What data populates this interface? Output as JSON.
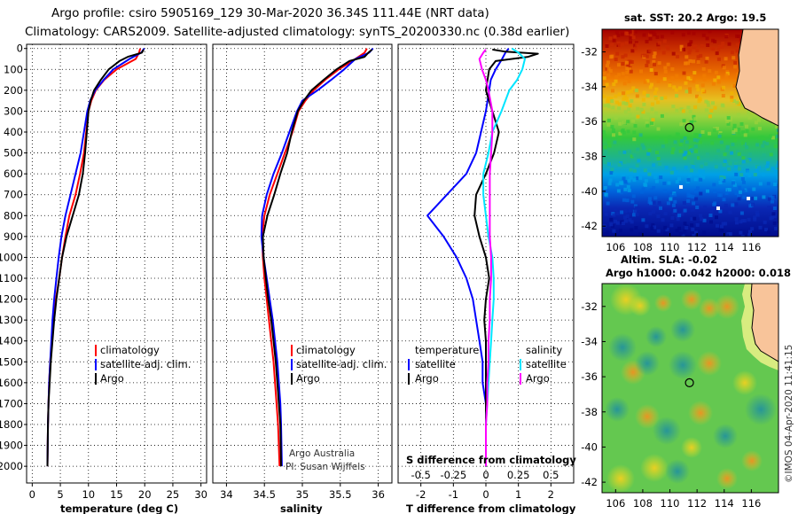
{
  "title": {
    "line1": "Argo profile: csiro 5905169_129 30-Mar-2020 36.34S 111.44E (NRT data)",
    "line2": "Climatology: CARS2009. Satellite-adjusted climatology: synTS_20200330.nc (0.38d earlier)"
  },
  "colors": {
    "argo": "#000000",
    "climatology": "#ff0000",
    "satellite": "#0000ff",
    "sat_salinity": "#00e5ff",
    "argo_salinity": "#ff00ff"
  },
  "chart_data": [
    {
      "type": "line",
      "name": "temperature",
      "xlabel": "temperature (deg C)",
      "ylabel": "",
      "xlim": [
        -1,
        31
      ],
      "ylim": [
        2080,
        -20
      ],
      "xticks": [
        0,
        5,
        10,
        15,
        20,
        25,
        30
      ],
      "yticks": [
        0,
        100,
        200,
        300,
        400,
        500,
        600,
        700,
        800,
        900,
        1000,
        1100,
        1200,
        1300,
        1400,
        1500,
        1600,
        1700,
        1800,
        1900,
        2000
      ],
      "legend": [
        "climatology",
        "satellite-adj. clim.",
        "Argo"
      ],
      "series": [
        {
          "name": "climatology",
          "color": "#ff0000",
          "x": [
            19.2,
            19.0,
            18.4,
            15.0,
            12.8,
            11.3,
            10.5,
            10.0,
            9.6,
            9.2,
            8.5,
            7.7,
            6.6,
            5.9,
            5.3,
            4.8,
            4.2,
            3.8,
            3.5,
            3.2,
            3.0,
            2.9,
            2.8,
            2.7
          ],
          "y": [
            0,
            20,
            50,
            100,
            150,
            200,
            250,
            300,
            400,
            500,
            600,
            700,
            800,
            900,
            1000,
            1100,
            1200,
            1300,
            1400,
            1500,
            1600,
            1700,
            1800,
            2000
          ]
        },
        {
          "name": "satellite-adj. clim.",
          "color": "#0000ff",
          "x": [
            19.9,
            19.4,
            17.3,
            14.4,
            12.7,
            11.2,
            10.3,
            9.8,
            9.2,
            8.6,
            7.7,
            6.8,
            5.9,
            5.2,
            4.7,
            4.3,
            3.9,
            3.6,
            3.4,
            3.2,
            3.0,
            2.9,
            2.8,
            2.7
          ],
          "y": [
            0,
            20,
            50,
            100,
            150,
            200,
            250,
            300,
            400,
            500,
            600,
            700,
            800,
            900,
            1000,
            1100,
            1200,
            1300,
            1400,
            1500,
            1600,
            1700,
            1800,
            2000
          ]
        },
        {
          "name": "Argo",
          "color": "#000000",
          "x": [
            19.8,
            19.5,
            17.0,
            15.5,
            13.6,
            12.2,
            11.0,
            10.4,
            10.0,
            9.7,
            9.4,
            9.0,
            8.3,
            7.2,
            6.1,
            5.3,
            4.8,
            4.3,
            3.9,
            3.6,
            3.3,
            3.1,
            2.9,
            2.8,
            2.7
          ],
          "y": [
            5,
            20,
            40,
            60,
            100,
            150,
            200,
            250,
            300,
            400,
            500,
            600,
            700,
            800,
            900,
            1000,
            1100,
            1200,
            1300,
            1400,
            1500,
            1600,
            1700,
            1800,
            2000
          ]
        }
      ]
    },
    {
      "type": "line",
      "name": "salinity",
      "xlabel": "salinity",
      "ylabel": "",
      "xlim": [
        33.82,
        36.18
      ],
      "ylim": [
        2080,
        -20
      ],
      "xticks": [
        34,
        34.5,
        35,
        35.5,
        36
      ],
      "legend": [
        "climatology",
        "satellite-adj. clim.",
        "Argo"
      ],
      "series": [
        {
          "name": "climatology",
          "color": "#ff0000",
          "x": [
            35.85,
            35.82,
            35.7,
            35.48,
            35.3,
            35.15,
            35.04,
            34.95,
            34.87,
            34.77,
            34.67,
            34.57,
            34.5,
            34.47,
            34.48,
            34.5,
            34.53,
            34.56,
            34.59,
            34.62,
            34.64,
            34.66,
            34.68,
            34.7
          ],
          "y": [
            0,
            20,
            50,
            100,
            150,
            200,
            250,
            300,
            400,
            500,
            600,
            700,
            800,
            900,
            1000,
            1100,
            1200,
            1300,
            1400,
            1500,
            1600,
            1700,
            1800,
            2000
          ]
        },
        {
          "name": "satellite-adj. clim.",
          "color": "#0000ff",
          "x": [
            35.93,
            35.88,
            35.7,
            35.55,
            35.38,
            35.2,
            35.0,
            34.93,
            34.83,
            34.73,
            34.62,
            34.53,
            34.47,
            34.46,
            34.49,
            34.53,
            34.57,
            34.61,
            34.64,
            34.67,
            34.69,
            34.71,
            34.72,
            34.73
          ],
          "y": [
            0,
            20,
            50,
            100,
            150,
            200,
            250,
            300,
            400,
            500,
            600,
            700,
            800,
            900,
            1000,
            1100,
            1200,
            1300,
            1400,
            1500,
            1600,
            1700,
            1800,
            2000
          ]
        },
        {
          "name": "Argo",
          "color": "#000000",
          "x": [
            35.92,
            35.87,
            35.82,
            35.62,
            35.45,
            35.28,
            35.12,
            35.02,
            34.94,
            34.86,
            34.8,
            34.71,
            34.63,
            34.54,
            34.48,
            34.49,
            34.52,
            34.55,
            34.59,
            34.62,
            34.65,
            34.67,
            34.69,
            34.71,
            34.72
          ],
          "y": [
            5,
            20,
            40,
            60,
            100,
            150,
            200,
            250,
            300,
            400,
            500,
            600,
            700,
            800,
            900,
            1000,
            1100,
            1200,
            1300,
            1400,
            1500,
            1600,
            1700,
            1800,
            2000
          ]
        }
      ]
    },
    {
      "type": "line",
      "name": "difference",
      "xlabel": "T difference from climatology",
      "x2label": "S difference from climatology",
      "xlim": [
        -2.7,
        2.7
      ],
      "ylim": [
        2080,
        -20
      ],
      "xticks": [
        -2,
        -1,
        0,
        1,
        2
      ],
      "x2ticks": [
        -0.5,
        -0.25,
        0,
        0.25,
        0.5
      ],
      "x2ticklabels": [
        "-0.5",
        "-0.25",
        "0",
        "0.25",
        "0.5"
      ],
      "legend_temperature_title": "temperature",
      "legend_salinity_title": "salinity",
      "legend": [
        "satellite",
        "Argo",
        "satellite",
        "Argo"
      ],
      "series": [
        {
          "name": "temperature satellite",
          "color": "#0000ff",
          "x": [
            0.7,
            0.6,
            0.5,
            0.3,
            0.15,
            0.1,
            0.0,
            -0.15,
            -0.3,
            -0.6,
            -1.2,
            -1.8,
            -1.3,
            -0.9,
            -0.6,
            -0.4,
            -0.3,
            -0.2,
            -0.1,
            -0.1,
            0.0,
            0.0,
            0.0
          ],
          "y": [
            0,
            20,
            50,
            100,
            150,
            200,
            300,
            400,
            500,
            600,
            700,
            800,
            900,
            1000,
            1100,
            1200,
            1300,
            1400,
            1500,
            1600,
            1700,
            1800,
            2000
          ]
        },
        {
          "name": "temperature Argo",
          "color": "#000000",
          "x": [
            0.2,
            0.6,
            1.6,
            1.3,
            0.3,
            0.1,
            0.0,
            0.2,
            0.4,
            0.25,
            0.0,
            -0.3,
            -0.35,
            -0.2,
            0.0,
            0.1,
            0.0,
            -0.05,
            0.0,
            0.0,
            0.0,
            0.0,
            0.0
          ],
          "y": [
            5,
            15,
            25,
            40,
            60,
            100,
            200,
            300,
            400,
            500,
            600,
            700,
            800,
            900,
            1000,
            1100,
            1200,
            1300,
            1400,
            1600,
            1700,
            1800,
            2000
          ]
        },
        {
          "name": "salinity satellite",
          "color": "#00e5ff",
          "x": [
            0.2,
            0.25,
            0.3,
            0.28,
            0.24,
            0.18,
            0.12,
            0.05,
            0.02,
            -0.02,
            -0.02,
            0.0,
            0.02,
            0.05,
            0.06,
            0.06,
            0.05,
            0.04,
            0.03,
            0.02,
            0.01,
            0.0,
            0.0
          ],
          "y": [
            0,
            20,
            50,
            100,
            150,
            200,
            300,
            400,
            500,
            600,
            700,
            800,
            900,
            1000,
            1100,
            1200,
            1300,
            1400,
            1500,
            1600,
            1700,
            1800,
            2000
          ]
        },
        {
          "name": "salinity Argo",
          "color": "#ff00ff",
          "x": [
            0.0,
            -0.02,
            -0.05,
            -0.03,
            0.0,
            0.02,
            0.05,
            0.05,
            0.04,
            0.03,
            0.03,
            0.03,
            0.03,
            0.04,
            0.04,
            0.03,
            0.03,
            0.02,
            0.02,
            0.01,
            0.01,
            0.0,
            0.0
          ],
          "y": [
            5,
            20,
            50,
            100,
            150,
            200,
            300,
            400,
            500,
            600,
            700,
            800,
            900,
            1000,
            1100,
            1200,
            1300,
            1400,
            1500,
            1600,
            1700,
            1800,
            2000
          ]
        }
      ]
    },
    {
      "type": "heatmap",
      "name": "sst-map",
      "title": "sat. SST: 20.2  Argo: 19.5",
      "xlim": [
        105,
        118
      ],
      "ylim": [
        -42.6,
        -30.7
      ],
      "xticks": [
        106,
        108,
        110,
        112,
        114,
        116
      ],
      "yticks": [
        -32,
        -34,
        -36,
        -38,
        -40,
        -42
      ],
      "profile_marker": {
        "lon": 111.44,
        "lat": -36.34
      }
    },
    {
      "type": "heatmap",
      "name": "sla-map",
      "title": "Altim. SLA: -0.02",
      "subtitle": "Argo h1000: 0.042  h2000: 0.018",
      "xlim": [
        105,
        118
      ],
      "ylim": [
        -42.6,
        -30.7
      ],
      "xticks": [
        106,
        108,
        110,
        112,
        114,
        116
      ],
      "yticks": [
        -32,
        -34,
        -36,
        -38,
        -40,
        -42
      ],
      "profile_marker": {
        "lon": 111.44,
        "lat": -36.34
      }
    }
  ],
  "credits": {
    "line1": "Argo Australia",
    "line2": "PI: Susan Wijffels",
    "stamp": "©IMOS 04-Apr-2020 11:41:15"
  }
}
